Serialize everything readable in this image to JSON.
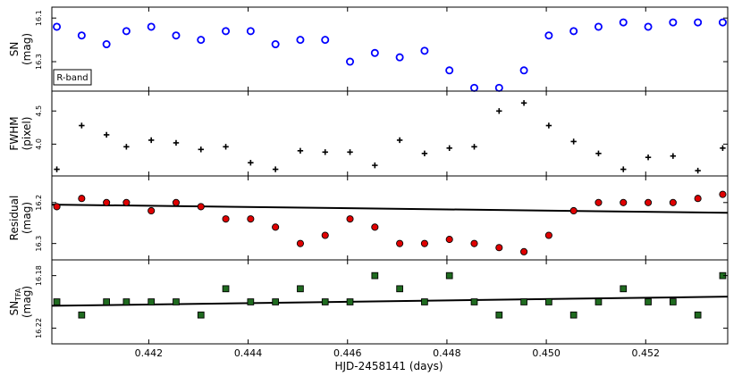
{
  "chart_data": {
    "type": "scatter",
    "shared_x": {
      "label": "HJD-2458141 (days)",
      "range": [
        0.44005,
        0.45365
      ],
      "ticks": [
        "0.442",
        "0.444",
        "0.446",
        "0.448",
        "0.450",
        "0.452"
      ],
      "tick_values": [
        0.442,
        0.444,
        0.446,
        0.448,
        0.45,
        0.452
      ]
    },
    "panels": [
      {
        "id": "sn",
        "ylabel_line1": "SN",
        "ylabel_line2": "(mag)",
        "ylim": [
          16.05,
          16.435
        ],
        "y_inverted": true,
        "yticks": [
          "16.1",
          "16.3"
        ],
        "ytick_values": [
          16.1,
          16.3
        ],
        "legend": "R-band",
        "marker": "open-circle",
        "color": "#0000ff",
        "x": [
          0.44015,
          0.44065,
          0.44115,
          0.44155,
          0.44205,
          0.44255,
          0.44305,
          0.44355,
          0.44405,
          0.44455,
          0.44505,
          0.44555,
          0.44605,
          0.44655,
          0.44705,
          0.44755,
          0.44805,
          0.44855,
          0.44905,
          0.44955,
          0.45005,
          0.45055,
          0.45105,
          0.45155,
          0.45205,
          0.45255,
          0.45305,
          0.45355
        ],
        "values": [
          16.14,
          16.18,
          16.22,
          16.16,
          16.14,
          16.18,
          16.2,
          16.16,
          16.16,
          16.22,
          16.2,
          16.2,
          16.3,
          16.26,
          16.28,
          16.25,
          16.34,
          16.42,
          16.42,
          16.34,
          16.18,
          16.16,
          16.14,
          16.12,
          16.14,
          16.12,
          16.12,
          16.12
        ]
      },
      {
        "id": "fwhm",
        "ylabel_line1": "FWHM",
        "ylabel_line2": "(pixel)",
        "ylim": [
          3.52,
          4.8
        ],
        "y_inverted": false,
        "yticks": [
          "3.5",
          "4.0",
          "4.5"
        ],
        "ytick_values": [
          3.5,
          4.0,
          4.5
        ],
        "marker": "plus",
        "color": "#000000",
        "x": [
          0.44015,
          0.44065,
          0.44115,
          0.44155,
          0.44205,
          0.44255,
          0.44305,
          0.44355,
          0.44405,
          0.44455,
          0.44505,
          0.44555,
          0.44605,
          0.44655,
          0.44705,
          0.44755,
          0.44805,
          0.44855,
          0.44905,
          0.44955,
          0.45005,
          0.45055,
          0.45105,
          0.45155,
          0.45205,
          0.45255,
          0.45305,
          0.45355
        ],
        "values": [
          3.62,
          4.28,
          4.14,
          3.96,
          4.06,
          4.02,
          3.92,
          3.96,
          3.72,
          3.62,
          3.9,
          3.88,
          3.88,
          3.68,
          4.06,
          3.86,
          3.94,
          3.96,
          4.5,
          4.62,
          4.28,
          4.04,
          3.86,
          3.62,
          3.8,
          3.82,
          3.6,
          3.94
        ]
      },
      {
        "id": "residual",
        "ylabel_line1": "Residual",
        "ylabel_line2": "(mag)",
        "ylim": [
          16.135,
          16.34
        ],
        "y_inverted": true,
        "yticks": [
          "16.2",
          "16.3"
        ],
        "ytick_values": [
          16.2,
          16.3
        ],
        "marker": "filled-circle",
        "color": "#e00000",
        "x": [
          0.44015,
          0.44065,
          0.44115,
          0.44155,
          0.44205,
          0.44255,
          0.44305,
          0.44355,
          0.44405,
          0.44455,
          0.44505,
          0.44555,
          0.44605,
          0.44655,
          0.44705,
          0.44755,
          0.44805,
          0.44855,
          0.44905,
          0.44955,
          0.45005,
          0.45055,
          0.45105,
          0.45155,
          0.45205,
          0.45255,
          0.45305,
          0.45355
        ],
        "values": [
          16.21,
          16.19,
          16.2,
          16.2,
          16.22,
          16.2,
          16.21,
          16.24,
          16.24,
          16.26,
          16.3,
          16.28,
          16.24,
          16.26,
          16.3,
          16.3,
          16.29,
          16.3,
          16.31,
          16.32,
          16.28,
          16.22,
          16.2,
          16.2,
          16.2,
          16.2,
          16.19,
          16.18
        ],
        "fit": {
          "x": [
            0.44005,
            0.45365
          ],
          "y": [
            16.205,
            16.225
          ]
        }
      },
      {
        "id": "sntfa",
        "ylabel_line1": "SN",
        "ylabel_sub": "TFA",
        "ylabel_line2": "(mag)",
        "ylim": [
          16.168,
          16.232
        ],
        "y_inverted": true,
        "yticks": [
          "16.18",
          "16.22"
        ],
        "ytick_values": [
          16.18,
          16.22
        ],
        "marker": "filled-square",
        "color": "#1f6b1f",
        "x": [
          0.44015,
          0.44065,
          0.44115,
          0.44155,
          0.44205,
          0.44255,
          0.44305,
          0.44355,
          0.44405,
          0.44455,
          0.44505,
          0.44555,
          0.44605,
          0.44655,
          0.44705,
          0.44755,
          0.44805,
          0.44855,
          0.44905,
          0.44955,
          0.45005,
          0.45055,
          0.45105,
          0.45155,
          0.45205,
          0.45255,
          0.45305,
          0.45355
        ],
        "values": [
          16.2,
          16.21,
          16.2,
          16.2,
          16.2,
          16.2,
          16.21,
          16.19,
          16.2,
          16.2,
          16.19,
          16.2,
          16.2,
          16.18,
          16.19,
          16.2,
          16.18,
          16.2,
          16.21,
          16.2,
          16.2,
          16.21,
          16.2,
          16.19,
          16.2,
          16.2,
          16.21,
          16.18
        ],
        "fit": {
          "x": [
            0.44005,
            0.45365
          ],
          "y": [
            16.203,
            16.196
          ]
        }
      }
    ]
  }
}
